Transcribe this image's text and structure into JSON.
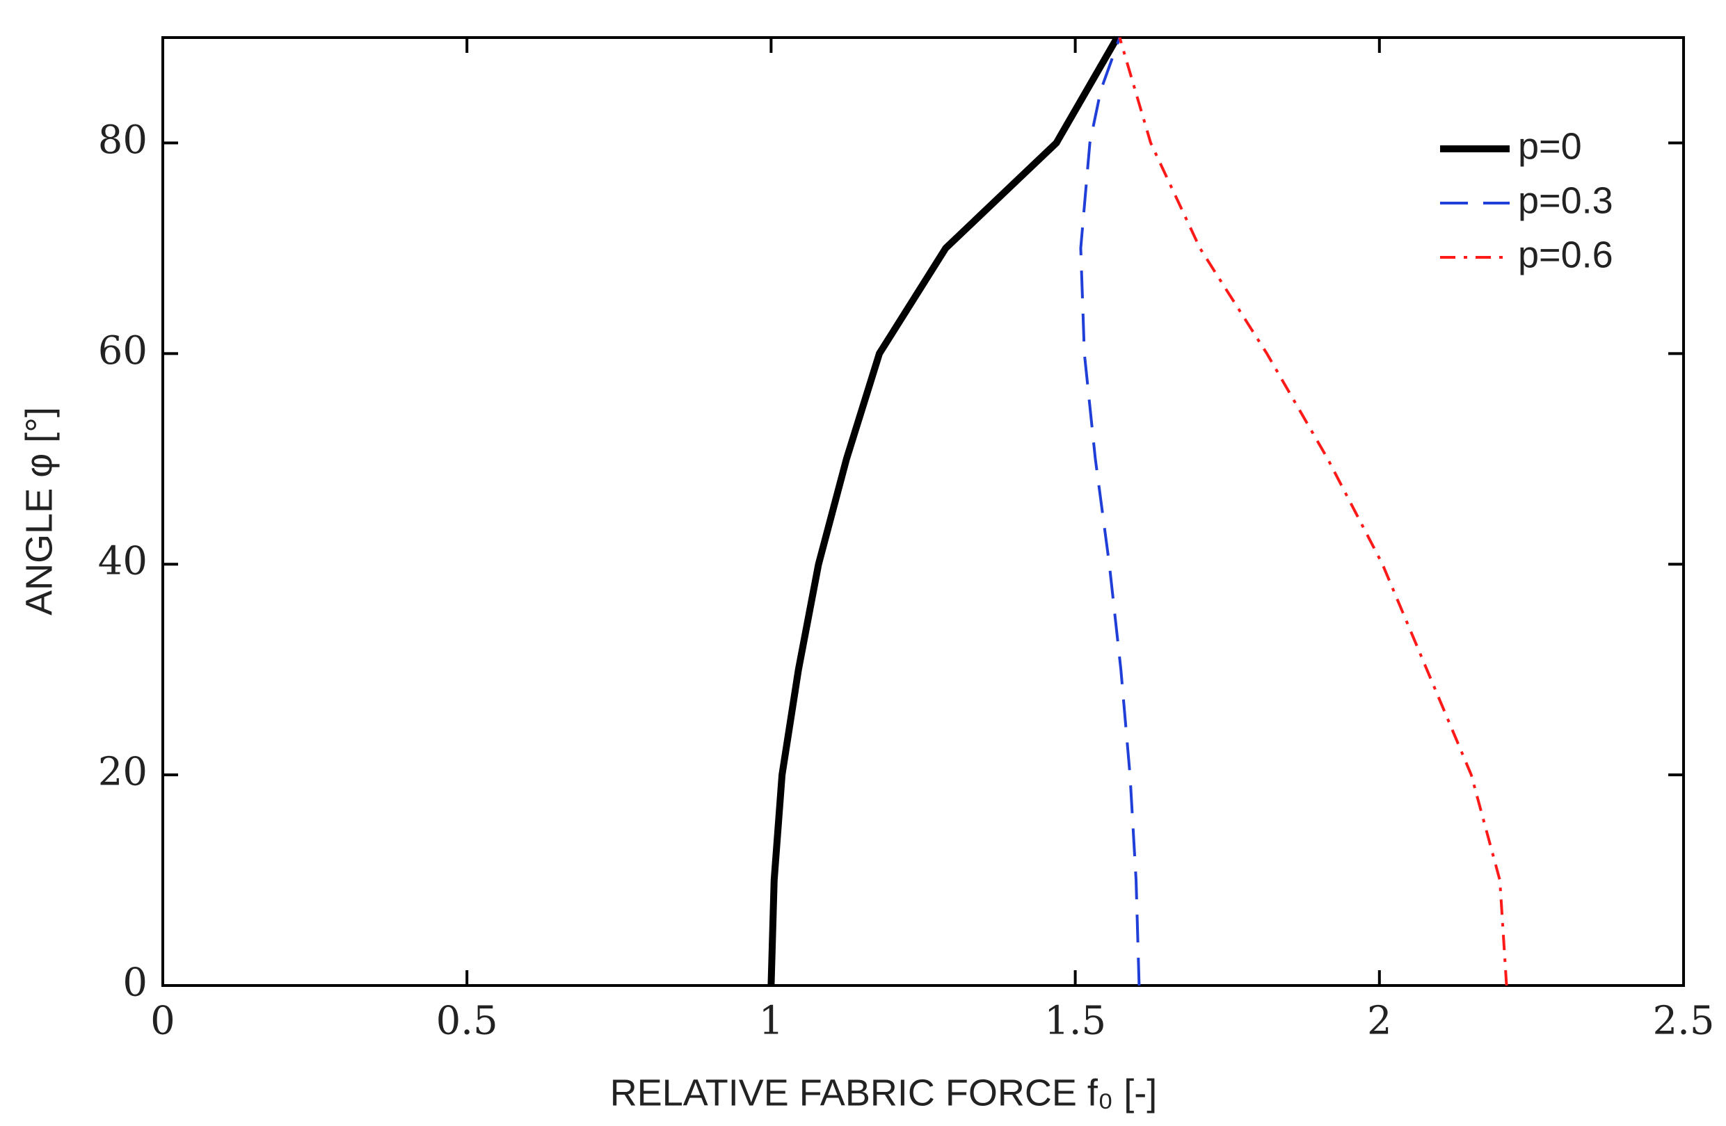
{
  "chart_data": {
    "type": "line",
    "x_label": "RELATIVE FABRIC FORCE  f₀ [-]",
    "y_label": "ANGLE φ [°]",
    "xlim": [
      0,
      2.5
    ],
    "xticks": [
      0,
      0.5,
      1,
      1.5,
      2,
      2.5
    ],
    "ylim": [
      0,
      90
    ],
    "yticks": [
      0,
      20,
      40,
      60,
      80
    ],
    "legend": "upper right",
    "series": [
      {
        "name": "p=0",
        "color": "#000000",
        "dash": "solid",
        "x": [
          1.0,
          1.005,
          1.018,
          1.045,
          1.078,
          1.124,
          1.178,
          1.287,
          1.469,
          1.569
        ],
        "values": [
          0,
          10,
          20,
          30,
          40,
          50,
          60,
          70,
          80,
          90
        ]
      },
      {
        "name": "p=0.3",
        "color": "#1f3fd8",
        "dash": "dashed",
        "x": [
          1.605,
          1.6,
          1.59,
          1.575,
          1.556,
          1.533,
          1.515,
          1.509,
          1.524,
          1.542,
          1.573
        ],
        "values": [
          0,
          10,
          20,
          30,
          40,
          50,
          60,
          70,
          80,
          85,
          90
        ]
      },
      {
        "name": "p=0.6",
        "color": "#ff1a1a",
        "dash": "dashdot",
        "x": [
          2.209,
          2.198,
          2.151,
          2.078,
          2.005,
          1.915,
          1.815,
          1.705,
          1.624,
          1.573
        ],
        "values": [
          0,
          10,
          20,
          30,
          40,
          50,
          60,
          70,
          80,
          90
        ]
      }
    ]
  }
}
